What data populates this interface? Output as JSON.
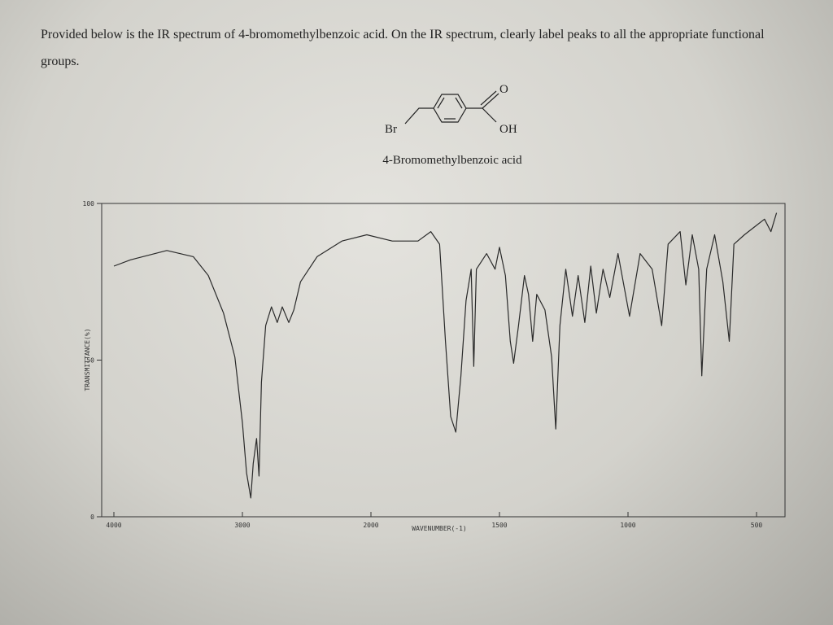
{
  "document": {
    "question": "Provided below is the IR spectrum of 4-bromomethylbenzoic acid. On the IR spectrum, clearly label peaks to all the appropriate functional groups.",
    "structure_labels": {
      "br": "Br",
      "o": "O",
      "oh": "OH"
    },
    "compound_name": "4-Bromomethylbenzoic acid"
  },
  "chart_data": {
    "type": "line",
    "xlabel": "WAVENUMBER(-1)",
    "ylabel": "TRANSMITTANCE(%)",
    "xlim": [
      4100,
      400
    ],
    "xticks": [
      4000,
      3000,
      2000,
      1500,
      1000,
      500
    ],
    "ylim": [
      0,
      100
    ],
    "yticks": [
      0,
      50,
      100
    ],
    "x": [
      4000,
      3871,
      3588,
      3382,
      3265,
      3147,
      3059,
      3000,
      2968,
      2935,
      2916,
      2890,
      2871,
      2852,
      2819,
      2774,
      2729,
      2690,
      2639,
      2600,
      2548,
      2419,
      2226,
      2032,
      1917,
      1817,
      1767,
      1733,
      1710,
      1690,
      1670,
      1650,
      1630,
      1610,
      1600,
      1590,
      1550,
      1517,
      1500,
      1477,
      1458,
      1445,
      1426,
      1403,
      1387,
      1371,
      1355,
      1323,
      1297,
      1281,
      1265,
      1242,
      1216,
      1194,
      1168,
      1145,
      1123,
      1097,
      1071,
      1039,
      994,
      953,
      906,
      869,
      844,
      797,
      775,
      750,
      725,
      713,
      694,
      663,
      631,
      606,
      588,
      547,
      500,
      469,
      444,
      422
    ],
    "series": [
      {
        "color": "#2a2a2a",
        "values": [
          80,
          82,
          85,
          83,
          77,
          65,
          51,
          30,
          14,
          6,
          17,
          25,
          13,
          43,
          61,
          67,
          62,
          67,
          62,
          66,
          75,
          83,
          88,
          90,
          88,
          88,
          91,
          87,
          56,
          32,
          27,
          45,
          69,
          79,
          48,
          79,
          84,
          79,
          86,
          77,
          56,
          49,
          61,
          77,
          71,
          56,
          71,
          66,
          51,
          28,
          61,
          79,
          64,
          77,
          62,
          80,
          65,
          79,
          70,
          84,
          64,
          84,
          79,
          61,
          87,
          91,
          74,
          90,
          79,
          45,
          79,
          90,
          75,
          56,
          87,
          90,
          93,
          95,
          91,
          97
        ]
      }
    ]
  }
}
